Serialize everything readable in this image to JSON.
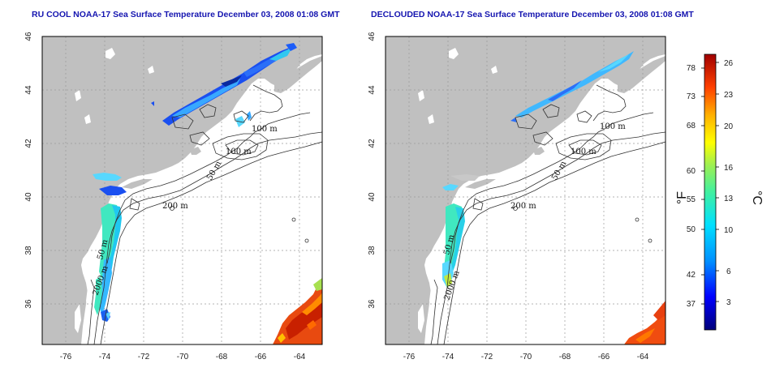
{
  "panels": [
    {
      "title": "RU COOL NOAA-17 Sea Surface Temperature December 03, 2008 01:08 GMT",
      "contour_labels": [
        "100 m",
        "100 m",
        "50 m",
        "200 m",
        "50 m",
        "2000 m"
      ]
    },
    {
      "title": "DECLOUDED NOAA-17 Sea Surface Temperature December 03, 2008 01:08 GMT",
      "contour_labels": [
        "100 m",
        "100 m",
        "50 m",
        "200 m",
        "50 m",
        "2000 m"
      ]
    }
  ],
  "axes": {
    "lon_ticks": [
      "-76",
      "-74",
      "-72",
      "-70",
      "-68",
      "-66",
      "-64"
    ],
    "lat_ticks": [
      "46",
      "44",
      "42",
      "40",
      "38",
      "36"
    ]
  },
  "colorbar": {
    "fahrenheit_ticks": [
      "78",
      "73",
      "68",
      "60",
      "55",
      "50",
      "42",
      "37"
    ],
    "celsius_ticks": [
      "26",
      "23",
      "20",
      "16",
      "13",
      "10",
      "6",
      "3"
    ],
    "fahrenheit_unit": "°F",
    "celsius_unit": "°C"
  },
  "colors": {
    "land": "#c0c0c0",
    "ocean": "#ffffff",
    "title": "#1515b0",
    "gridline": "#9a9a9a"
  }
}
